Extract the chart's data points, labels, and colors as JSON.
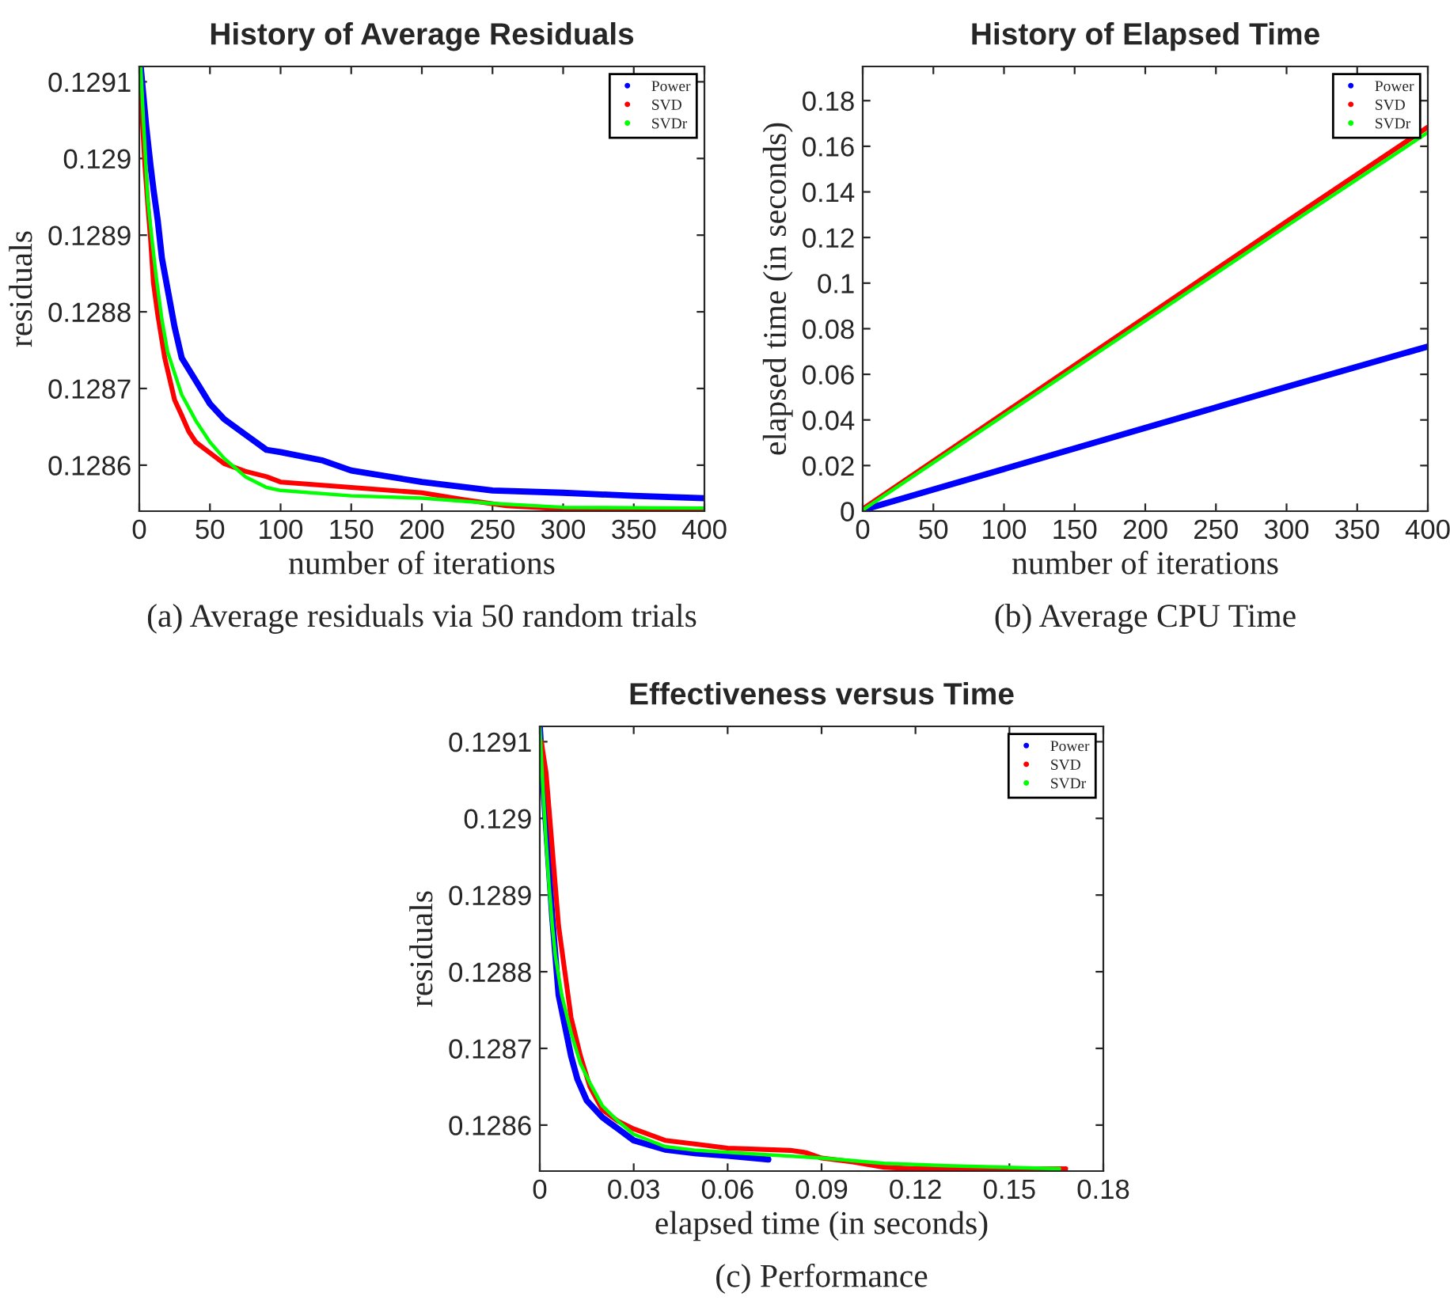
{
  "chart_data": [
    {
      "type": "line",
      "title": "History of Average Residuals",
      "xlabel": "number of iterations",
      "ylabel": "residuals",
      "annotations": [
        "(a) Average residuals via 50 random trials"
      ],
      "xlim": [
        0,
        400
      ],
      "xticks": [
        0,
        50,
        100,
        150,
        200,
        250,
        300,
        350,
        400
      ],
      "ylim": [
        0.12854,
        0.12912
      ],
      "yticks": [
        0.1286,
        0.1287,
        0.1288,
        0.1289,
        0.129,
        0.1291
      ],
      "legend": "top right",
      "grid": false,
      "series": [
        {
          "name": "Power",
          "color": "#0000ff",
          "x": [
            1,
            3,
            5,
            8,
            10,
            13,
            16,
            20,
            25,
            30,
            40,
            50,
            60,
            75,
            90,
            100,
            130,
            150,
            200,
            250,
            300,
            350,
            400
          ],
          "values": [
            0.12912,
            0.12908,
            0.12904,
            0.12899,
            0.12896,
            0.12892,
            0.12887,
            0.12883,
            0.12878,
            0.12874,
            0.12871,
            0.12868,
            0.12866,
            0.12864,
            0.12862,
            0.128617,
            0.128606,
            0.128593,
            0.128578,
            0.128567,
            0.128564,
            0.12856,
            0.128557
          ]
        },
        {
          "name": "SVD",
          "color": "#ff0000",
          "x": [
            1,
            2,
            4,
            6,
            8,
            10,
            13,
            18,
            25,
            30,
            35,
            40,
            50,
            60,
            75,
            90,
            100,
            150,
            200,
            230,
            260,
            300,
            400
          ],
          "values": [
            0.1291,
            0.129055,
            0.12899,
            0.12894,
            0.128894,
            0.128838,
            0.128797,
            0.12874,
            0.128685,
            0.128665,
            0.128644,
            0.12863,
            0.128616,
            0.128602,
            0.128592,
            0.128585,
            0.128578,
            0.128571,
            0.128564,
            0.128555,
            0.128547,
            0.128543,
            0.128543
          ]
        },
        {
          "name": "SVDr",
          "color": "#00ff00",
          "x": [
            1,
            3,
            6,
            9,
            12,
            16,
            20,
            30,
            40,
            50,
            60,
            75,
            90,
            100,
            150,
            200,
            250,
            300,
            400
          ],
          "values": [
            0.12912,
            0.129047,
            0.128946,
            0.128894,
            0.128845,
            0.12879,
            0.128748,
            0.128692,
            0.128658,
            0.12863,
            0.128609,
            0.128585,
            0.128571,
            0.128567,
            0.12856,
            0.128557,
            0.12855,
            0.128545,
            0.128544
          ]
        }
      ]
    },
    {
      "type": "line",
      "title": "History of Elapsed Time",
      "xlabel": "number of iterations",
      "ylabel": "elapsed time (in seconds)",
      "annotations": [
        "(b) Average CPU Time"
      ],
      "xlim": [
        0,
        400
      ],
      "xticks": [
        0,
        50,
        100,
        150,
        200,
        250,
        300,
        350,
        400
      ],
      "ylim": [
        0,
        0.195
      ],
      "yticks": [
        0,
        0.02,
        0.04,
        0.06,
        0.08,
        0.1,
        0.12,
        0.14,
        0.16,
        0.18
      ],
      "legend": "top right",
      "grid": false,
      "series": [
        {
          "name": "Power",
          "color": "#0000ff",
          "x": [
            0,
            100,
            200,
            300,
            400
          ],
          "values": [
            0.0005,
            0.0185,
            0.0365,
            0.0545,
            0.0722
          ]
        },
        {
          "name": "SVD",
          "color": "#ff0000",
          "x": [
            0,
            100,
            200,
            300,
            400
          ],
          "values": [
            0.001,
            0.043,
            0.085,
            0.127,
            0.1684
          ]
        },
        {
          "name": "SVDr",
          "color": "#00ff00",
          "x": [
            0,
            100,
            200,
            300,
            400
          ],
          "values": [
            0.0005,
            0.042,
            0.0835,
            0.125,
            0.1661
          ]
        }
      ]
    },
    {
      "type": "line",
      "title": "Effectiveness versus Time",
      "xlabel": "elapsed time (in seconds)",
      "ylabel": "residuals",
      "annotations": [
        "(c) Performance"
      ],
      "xlim": [
        0,
        0.18
      ],
      "xticks": [
        0,
        0.03,
        0.06,
        0.09,
        0.12,
        0.15,
        0.18
      ],
      "ylim": [
        0.12854,
        0.12912
      ],
      "yticks": [
        0.1286,
        0.1287,
        0.1288,
        0.1289,
        0.129,
        0.1291
      ],
      "legend": "top right",
      "grid": false,
      "series": [
        {
          "name": "Power",
          "color": "#0000ff",
          "x": [
            0,
            0.001,
            0.002,
            0.003,
            0.004,
            0.005,
            0.006,
            0.008,
            0.01,
            0.012,
            0.015,
            0.02,
            0.025,
            0.03,
            0.04,
            0.05,
            0.06,
            0.073
          ],
          "values": [
            0.12912,
            0.12905,
            0.12899,
            0.12893,
            0.12887,
            0.12882,
            0.12877,
            0.12873,
            0.12869,
            0.12866,
            0.128632,
            0.12861,
            0.128595,
            0.12858,
            0.128568,
            0.128563,
            0.12856,
            0.128555
          ]
        },
        {
          "name": "SVD",
          "color": "#ff0000",
          "x": [
            0.0005,
            0.002,
            0.003,
            0.004,
            0.005,
            0.006,
            0.008,
            0.01,
            0.013,
            0.016,
            0.02,
            0.025,
            0.03,
            0.04,
            0.05,
            0.06,
            0.08,
            0.085,
            0.09,
            0.1,
            0.11,
            0.12,
            0.168
          ],
          "values": [
            0.1291,
            0.12906,
            0.12901,
            0.12896,
            0.12891,
            0.12886,
            0.1288,
            0.12874,
            0.12869,
            0.12865,
            0.12862,
            0.128605,
            0.128595,
            0.12858,
            0.128575,
            0.12857,
            0.128567,
            0.128564,
            0.128557,
            0.128552,
            0.128545,
            0.128543,
            0.128543
          ]
        },
        {
          "name": "SVDr",
          "color": "#00ff00",
          "x": [
            0,
            0.001,
            0.002,
            0.003,
            0.004,
            0.005,
            0.007,
            0.01,
            0.013,
            0.016,
            0.02,
            0.025,
            0.03,
            0.04,
            0.05,
            0.07,
            0.09,
            0.11,
            0.13,
            0.166
          ],
          "values": [
            0.12912,
            0.12904,
            0.12897,
            0.12891,
            0.12886,
            0.12882,
            0.12877,
            0.12872,
            0.12868,
            0.128655,
            0.128625,
            0.128605,
            0.128588,
            0.128572,
            0.128567,
            0.128562,
            0.128557,
            0.12855,
            0.128547,
            0.128543
          ]
        }
      ]
    }
  ]
}
